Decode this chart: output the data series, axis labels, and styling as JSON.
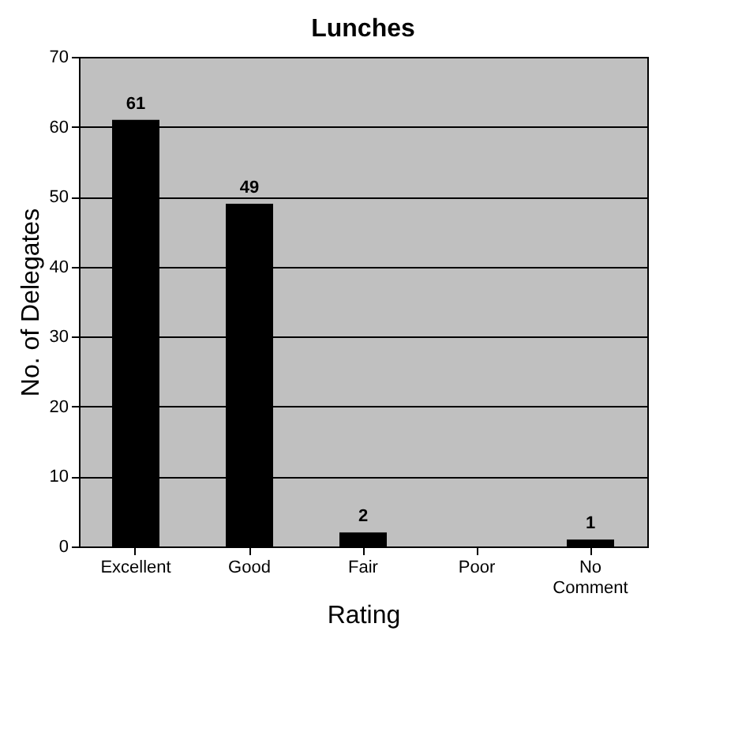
{
  "chart_data": {
    "type": "bar",
    "title": "Lunches",
    "xlabel": "Rating",
    "ylabel": "No. of Delegates",
    "categories": [
      "Excellent",
      "Good",
      "Fair",
      "Poor",
      "No Comment"
    ],
    "values": [
      61,
      49,
      2,
      0,
      1
    ],
    "color": "#000000",
    "value_labels": [
      "61",
      "49",
      "2",
      null,
      "1"
    ],
    "ylim": [
      0,
      70
    ],
    "yticks": [
      0,
      10,
      20,
      30,
      40,
      50,
      60,
      70
    ],
    "grid": "y"
  }
}
